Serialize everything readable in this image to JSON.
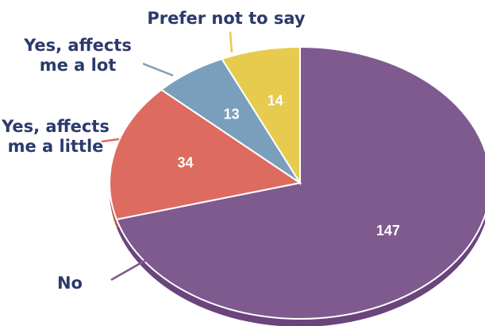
{
  "chart_data": {
    "type": "pie",
    "title": "",
    "slices": [
      {
        "label_lines": [
          "No"
        ],
        "value": 147,
        "color": "#7e5a8f",
        "shadow": "#6a447c"
      },
      {
        "label_lines": [
          "Yes, affects",
          "me a little"
        ],
        "value": 34,
        "color": "#de6b5f",
        "shadow": "#b8564c"
      },
      {
        "label_lines": [
          "Yes, affects",
          "me a lot"
        ],
        "value": 13,
        "color": "#7a9fbc",
        "shadow": "#5d819c"
      },
      {
        "label_lines": [
          "Prefer not to say"
        ],
        "value": 14,
        "color": "#e6cb4e",
        "shadow": "#c4aa36"
      }
    ],
    "text_color": "#2b3a6b"
  }
}
